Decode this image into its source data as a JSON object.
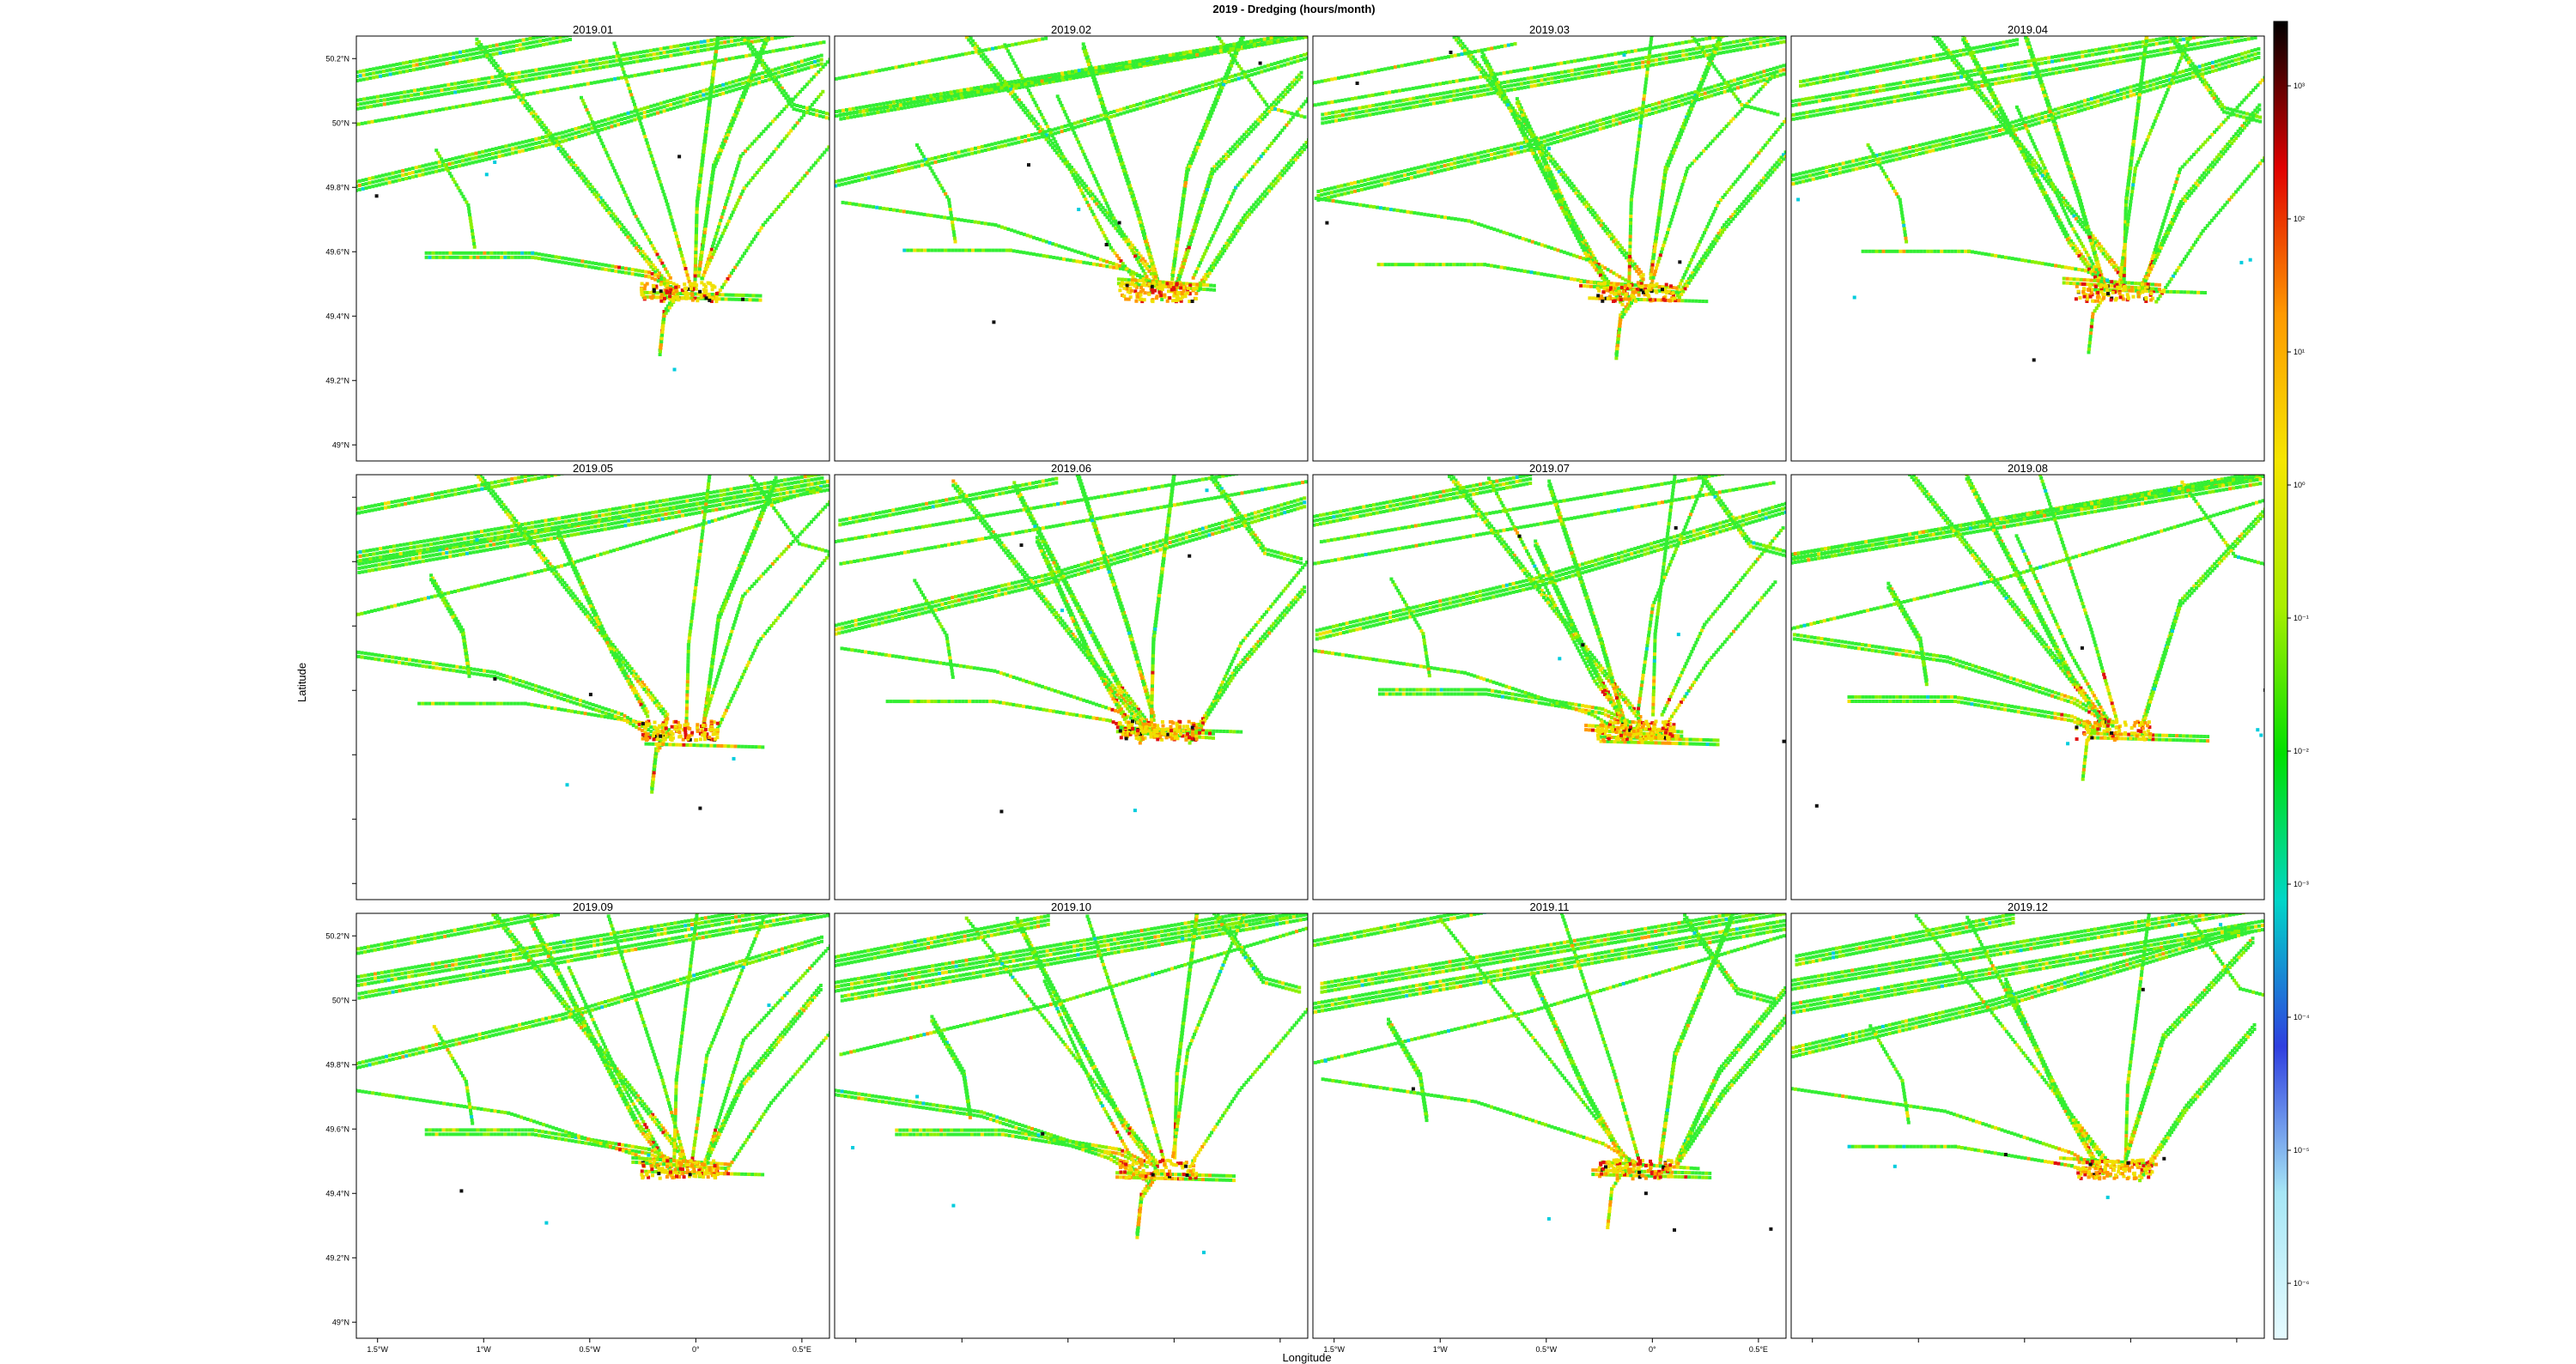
{
  "figure": {
    "title": "2019 - Dredging (hours/month)",
    "xlabel": "Longitude",
    "ylabel": "Latitude"
  },
  "axes": {
    "lat_ticks": [
      "50.2°N",
      "50°N",
      "49.8°N",
      "49.6°N",
      "49.4°N",
      "49.2°N",
      "49°N"
    ],
    "lon_ticks": [
      "1.5°W",
      "1°W",
      "0.5°W",
      "0°",
      "0.5°E"
    ],
    "lat_range": [
      48.95,
      50.27
    ],
    "lon_range": [
      -1.6,
      0.63
    ]
  },
  "panels": [
    {
      "label": "2019.01",
      "seed": 11,
      "hot": 6
    },
    {
      "label": "2019.02",
      "seed": 23,
      "hot": 7
    },
    {
      "label": "2019.03",
      "seed": 37,
      "hot": 6
    },
    {
      "label": "2019.04",
      "seed": 41,
      "hot": 5
    },
    {
      "label": "2019.05",
      "seed": 53,
      "hot": 8
    },
    {
      "label": "2019.06",
      "seed": 67,
      "hot": 8
    },
    {
      "label": "2019.07",
      "seed": 71,
      "hot": 9
    },
    {
      "label": "2019.08",
      "seed": 83,
      "hot": 5
    },
    {
      "label": "2019.09",
      "seed": 97,
      "hot": 6
    },
    {
      "label": "2019.10",
      "seed": 101,
      "hot": 5
    },
    {
      "label": "2019.11",
      "seed": 113,
      "hot": 6
    },
    {
      "label": "2019.12",
      "seed": 127,
      "hot": 7
    }
  ],
  "colorbar": {
    "scale": "log",
    "tick_labels": [
      "10³",
      "10²",
      "10¹",
      "10⁰",
      "10⁻¹",
      "10⁻²",
      "10⁻³",
      "10⁻⁴",
      "10⁻⁵",
      "10⁻⁶"
    ],
    "colors": [
      "#e6fbff",
      "#a6e6f5",
      "#2f3fe0",
      "#00d6c8",
      "#00e000",
      "#aaee00",
      "#f5e600",
      "#ff9900",
      "#e00000",
      "#000000"
    ]
  },
  "colors": {
    "track": "#33ee33",
    "track_light": "#88f000",
    "track_yellow": "#f0e000",
    "hot_orange": "#ff9900",
    "hot_red": "#e01010",
    "hot_black": "#101010",
    "cyan": "#00ccdd"
  }
}
